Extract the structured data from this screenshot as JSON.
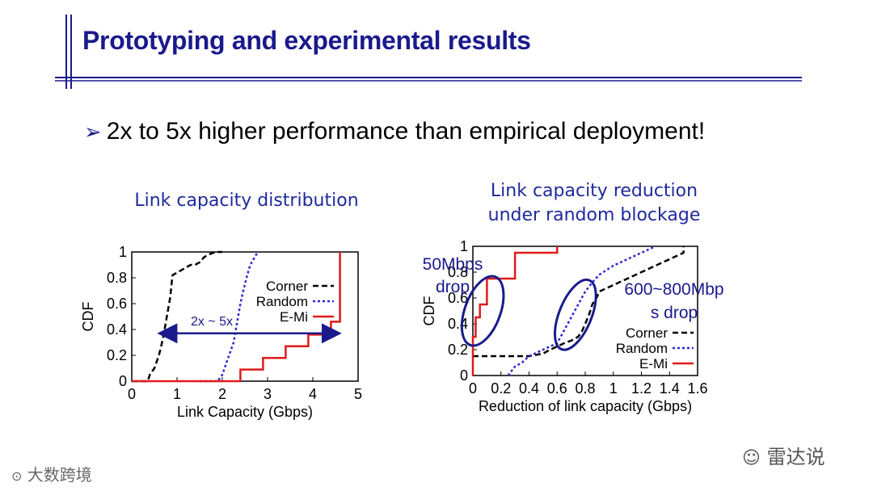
{
  "slide": {
    "title": "Prototyping and experimental results",
    "bullet_marker": "➢",
    "bullet": "2x to 5x higher performance than empirical deployment!"
  },
  "colors": {
    "title": "#1a1a8c",
    "corner": "#000000",
    "random": "#2a2ad0",
    "emi": "#e01a1a",
    "annotation": "#1a1a8c"
  },
  "watermarks": {
    "left": "大数跨境",
    "right": "雷达说"
  },
  "chart_data": [
    {
      "type": "line",
      "title": "Link capacity distribution",
      "xlabel": "Link Capacity (Gbps)",
      "ylabel": "CDF",
      "xlim": [
        0,
        5
      ],
      "ylim": [
        0,
        1
      ],
      "xticks": [
        "0",
        "1",
        "2",
        "3",
        "4",
        "5"
      ],
      "yticks": [
        "0",
        "0.2",
        "0.4",
        "0.6",
        "0.8",
        "1"
      ],
      "legend_position": "right",
      "series": [
        {
          "name": "Corner",
          "style": "dashed",
          "color": "#000000",
          "x": [
            0.0,
            0.35,
            0.4,
            0.5,
            0.6,
            0.65,
            0.7,
            0.75,
            0.8,
            0.85,
            0.9,
            1.0,
            1.1,
            1.2,
            1.3,
            1.4,
            1.5,
            1.6,
            1.7,
            1.85,
            2.0
          ],
          "y": [
            0.0,
            0.0,
            0.05,
            0.1,
            0.2,
            0.27,
            0.35,
            0.45,
            0.55,
            0.65,
            0.82,
            0.84,
            0.86,
            0.88,
            0.9,
            0.9,
            0.92,
            0.96,
            0.98,
            1.0,
            1.0
          ]
        },
        {
          "name": "Random",
          "style": "dotted",
          "color": "#2a2ad0",
          "x": [
            1.5,
            1.9,
            2.0,
            2.05,
            2.1,
            2.15,
            2.2,
            2.25,
            2.3,
            2.35,
            2.4,
            2.45,
            2.5,
            2.55,
            2.6,
            2.65,
            2.7,
            2.75,
            2.8
          ],
          "y": [
            0.0,
            0.0,
            0.05,
            0.1,
            0.15,
            0.2,
            0.25,
            0.3,
            0.4,
            0.5,
            0.6,
            0.68,
            0.75,
            0.82,
            0.88,
            0.92,
            0.95,
            0.98,
            1.0
          ]
        },
        {
          "name": "E-Mi",
          "style": "solid",
          "color": "#e01a1a",
          "x": [
            0.0,
            2.4,
            2.4,
            2.9,
            2.9,
            3.4,
            3.4,
            3.9,
            3.9,
            4.4,
            4.4,
            4.6,
            4.6
          ],
          "y": [
            0.0,
            0.0,
            0.09,
            0.09,
            0.18,
            0.18,
            0.27,
            0.27,
            0.36,
            0.36,
            0.46,
            0.46,
            1.0
          ]
        }
      ],
      "annotation": {
        "text": "2x ~ 5x",
        "from_x": 0.65,
        "to_x": 4.55,
        "at_y": 0.37
      }
    },
    {
      "type": "line",
      "title": "Link capacity reduction\nunder random blockage",
      "xlabel": "Reduction of link capacity (Gbps)",
      "ylabel": "CDF",
      "xlim": [
        0,
        1.6
      ],
      "ylim": [
        0,
        1
      ],
      "xticks": [
        "0",
        "0.2",
        "0.4",
        "0.6",
        "0.8",
        "1",
        "1.2",
        "1.4",
        "1.6"
      ],
      "yticks": [
        "0",
        "0.2",
        "0.4",
        "0.6",
        "0.8",
        "1"
      ],
      "legend_position": "right",
      "series": [
        {
          "name": "Corner",
          "style": "dashed",
          "color": "#000000",
          "x": [
            0.0,
            0.05,
            0.4,
            0.5,
            0.55,
            0.65,
            0.7,
            0.75,
            0.78,
            0.8,
            0.83,
            0.85,
            0.88,
            0.9,
            1.0,
            1.2,
            1.4,
            1.5,
            1.5
          ],
          "y": [
            0.15,
            0.15,
            0.15,
            0.17,
            0.2,
            0.25,
            0.27,
            0.3,
            0.35,
            0.4,
            0.48,
            0.55,
            0.6,
            0.65,
            0.7,
            0.8,
            0.9,
            0.95,
            1.0
          ]
        },
        {
          "name": "Random",
          "style": "dotted",
          "color": "#2a2ad0",
          "x": [
            0.25,
            0.3,
            0.35,
            0.4,
            0.5,
            0.6,
            0.65,
            0.7,
            0.75,
            0.8,
            0.85,
            0.9,
            1.0,
            1.1,
            1.2,
            1.3
          ],
          "y": [
            0.0,
            0.07,
            0.1,
            0.15,
            0.2,
            0.25,
            0.35,
            0.45,
            0.55,
            0.65,
            0.72,
            0.78,
            0.85,
            0.9,
            0.95,
            1.0
          ]
        },
        {
          "name": "E-Mi",
          "style": "solid",
          "color": "#e01a1a",
          "x": [
            0.0,
            0.0,
            0.02,
            0.02,
            0.05,
            0.05,
            0.1,
            0.1,
            0.15,
            0.15,
            0.3,
            0.3,
            0.6,
            0.6
          ],
          "y": [
            0.0,
            0.3,
            0.3,
            0.45,
            0.45,
            0.55,
            0.55,
            0.75,
            0.75,
            0.75,
            0.75,
            0.95,
            0.95,
            1.0
          ]
        }
      ],
      "annotations": [
        {
          "text": "50Mbps\ndrop",
          "cx": 0.05,
          "cy": 0.48
        },
        {
          "text": "600~800Mbp\ns drop",
          "cx": 0.75,
          "cy": 0.47
        }
      ]
    }
  ]
}
